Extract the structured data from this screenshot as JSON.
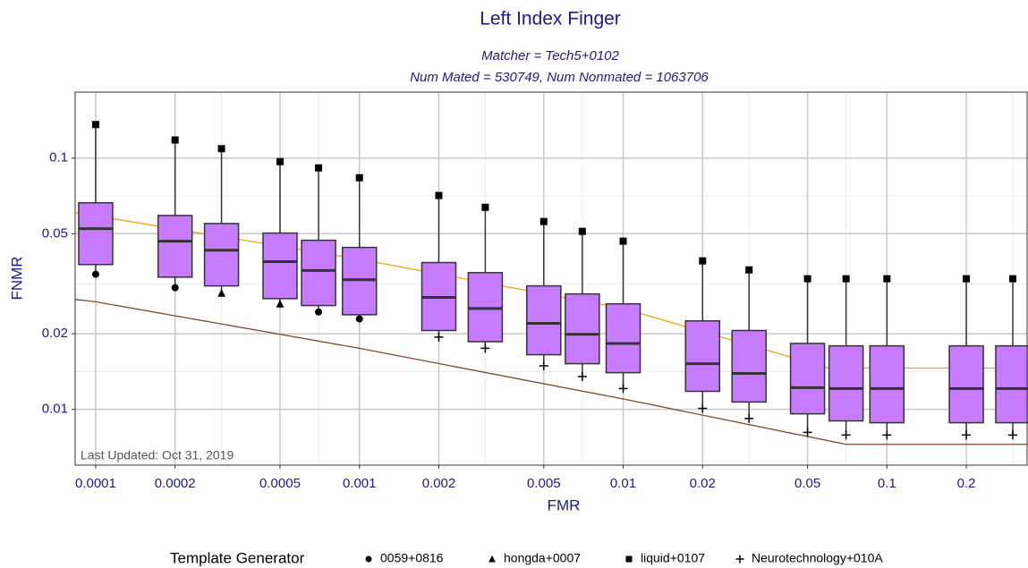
{
  "chart_data": {
    "type": "box",
    "title": "Left Index Finger",
    "subtitle": [
      "Matcher = Tech5+0102",
      "Num Mated = 530749, Num Nonmated = 1063706"
    ],
    "xlabel": "FMR",
    "ylabel": "FNMR",
    "annotation": "Last Updated: Oct 31, 2019",
    "xscale": "log",
    "yscale": "log",
    "grid": true,
    "xlim": [
      8.36e-05,
      0.34
    ],
    "ylim": [
      0.006,
      0.183
    ],
    "xticks": [
      0.0001,
      0.0002,
      0.0005,
      0.001,
      0.002,
      0.005,
      0.01,
      0.02,
      0.05,
      0.1,
      0.2
    ],
    "yticks": [
      0.01,
      0.02,
      0.05,
      0.1
    ],
    "box_color": "#c77cff",
    "x": [
      0.0001,
      0.0002,
      0.0003,
      0.0005,
      0.0007,
      0.001,
      0.002,
      0.003,
      0.005,
      0.007,
      0.01,
      0.02,
      0.03,
      0.05,
      0.07,
      0.1,
      0.2,
      0.3
    ],
    "max": [
      0.136,
      0.118,
      0.109,
      0.0968,
      0.0914,
      0.0835,
      0.071,
      0.0637,
      0.0559,
      0.0511,
      0.0467,
      0.039,
      0.0359,
      0.0331,
      0.0331,
      0.0331,
      0.0331,
      0.0331
    ],
    "q3": [
      0.0664,
      0.0591,
      0.0549,
      0.0503,
      0.0471,
      0.0441,
      0.0384,
      0.035,
      0.031,
      0.0288,
      0.0263,
      0.0225,
      0.0206,
      0.0183,
      0.0179,
      0.0179,
      0.0179,
      0.0179
    ],
    "median": [
      0.0524,
      0.0467,
      0.043,
      0.0387,
      0.0357,
      0.0328,
      0.0279,
      0.0252,
      0.022,
      0.0199,
      0.0183,
      0.0152,
      0.0139,
      0.0122,
      0.0121,
      0.0121,
      0.0121,
      0.0121
    ],
    "q1": [
      0.0377,
      0.0336,
      0.031,
      0.0276,
      0.0259,
      0.0238,
      0.0206,
      0.0186,
      0.0165,
      0.0152,
      0.014,
      0.0118,
      0.0107,
      0.0096,
      0.009,
      0.00885,
      0.00885,
      0.00885
    ],
    "min": [
      0.0345,
      0.0305,
      0.029,
      0.0263,
      0.0244,
      0.0229,
      0.0194,
      0.0175,
      0.0149,
      0.0135,
      0.0121,
      0.0101,
      0.0092,
      0.0081,
      0.0079,
      0.0079,
      0.0079,
      0.0079
    ],
    "max_marker": "square",
    "min_marker": [
      "circle",
      "circle",
      "triangle",
      "triangle",
      "circle",
      "circle",
      "plus",
      "plus",
      "plus",
      "plus",
      "plus",
      "plus",
      "plus",
      "plus",
      "plus",
      "plus",
      "plus",
      "plus"
    ],
    "lines": [
      {
        "color": "#f5a300",
        "x": [
          8.36e-05,
          0.001,
          0.01,
          0.06,
          0.34
        ],
        "y": [
          0.0607,
          0.0396,
          0.0252,
          0.0146,
          0.0146
        ]
      },
      {
        "color": "#7a4a2e",
        "x": [
          8.36e-05,
          0.0001,
          0.001,
          0.01,
          0.07,
          0.34
        ],
        "y": [
          0.0274,
          0.0268,
          0.0175,
          0.011,
          0.00726,
          0.00726
        ]
      }
    ],
    "legend": {
      "title": "Template Generator",
      "position": "bottom",
      "entries": [
        {
          "name": "0059+0816",
          "marker": "circle"
        },
        {
          "name": "hongda+0007",
          "marker": "triangle"
        },
        {
          "name": "liquid+0107",
          "marker": "square"
        },
        {
          "name": "Neurotechnology+010A",
          "marker": "plus"
        }
      ]
    }
  }
}
